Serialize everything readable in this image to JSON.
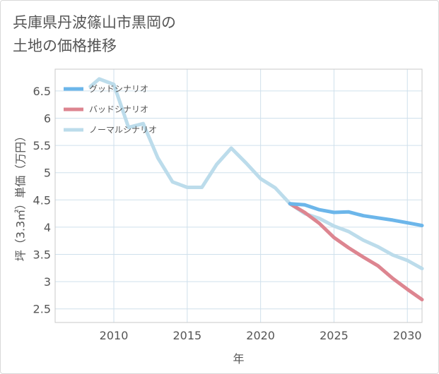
{
  "title": {
    "line1": "兵庫県丹波篠山市黒岡の",
    "line2": "土地の価格推移"
  },
  "chart_data": {
    "type": "line",
    "xlabel": "年",
    "ylabel": "坪（3.3㎡）単価（万円）",
    "xlim": [
      2006,
      2031
    ],
    "ylim": [
      2.25,
      6.9
    ],
    "x_ticks": [
      2010,
      2015,
      2020,
      2025,
      2030
    ],
    "x_tick_labels": [
      "2010",
      "2015",
      "2020",
      "2025",
      "2030"
    ],
    "y_ticks": [
      2.5,
      3,
      3.5,
      4,
      4.5,
      5,
      5.5,
      6,
      6.5
    ],
    "y_tick_labels": [
      "2.5",
      "3",
      "3.5",
      "4",
      "4.5",
      "5",
      "5.5",
      "6",
      "6.5"
    ],
    "grid": true,
    "legend_position": "top-left",
    "series": [
      {
        "name": "グッドシナリオ",
        "color": "#6cb6ea",
        "x": [
          2022,
          2023,
          2024,
          2025,
          2026,
          2027,
          2028,
          2029,
          2030,
          2031
        ],
        "y": [
          4.43,
          4.41,
          4.32,
          4.27,
          4.28,
          4.21,
          4.17,
          4.13,
          4.08,
          4.03
        ]
      },
      {
        "name": "バッドシナリオ",
        "color": "#dd8590",
        "x": [
          2022,
          2023,
          2024,
          2025,
          2026,
          2027,
          2028,
          2029,
          2030,
          2031
        ],
        "y": [
          4.43,
          4.27,
          4.07,
          3.81,
          3.62,
          3.45,
          3.29,
          3.06,
          2.86,
          2.67
        ]
      },
      {
        "name": "ノーマルシナリオ",
        "color": "#bcdceb",
        "x": [
          2008.4,
          2009,
          2010,
          2011,
          2012,
          2013,
          2014,
          2015,
          2016,
          2017,
          2018,
          2019,
          2020,
          2021,
          2022,
          2023,
          2024,
          2025,
          2026,
          2027,
          2028,
          2029,
          2030,
          2031
        ],
        "y": [
          6.58,
          6.72,
          6.62,
          5.83,
          5.9,
          5.27,
          4.83,
          4.73,
          4.73,
          5.15,
          5.45,
          5.18,
          4.89,
          4.72,
          4.43,
          4.25,
          4.16,
          4.02,
          3.92,
          3.76,
          3.64,
          3.49,
          3.39,
          3.24
        ]
      }
    ]
  }
}
